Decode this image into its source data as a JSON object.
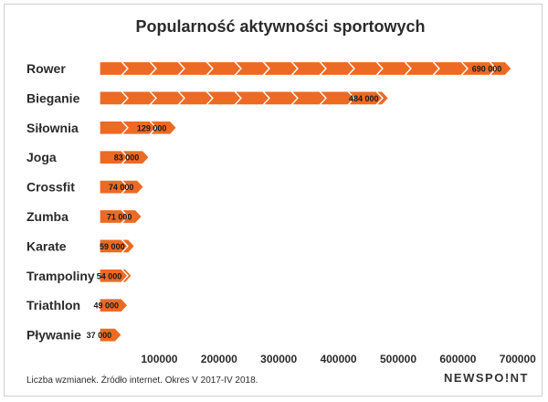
{
  "chart_data": {
    "type": "bar",
    "orientation": "horizontal",
    "title": "Popularność aktywności sportowych",
    "categories": [
      "Rower",
      "Bieganie",
      "Siłownia",
      "Joga",
      "Crossfit",
      "Zumba",
      "Karate",
      "Trampoliny",
      "Triathlon",
      "Pływanie"
    ],
    "values": [
      690000,
      484000,
      129000,
      83000,
      74000,
      71000,
      59000,
      54000,
      49000,
      37000
    ],
    "value_labels": [
      "690 000",
      "484 000",
      "129 000",
      "83 000",
      "74 000",
      "71 000",
      "59 000",
      "54 000",
      "49 000",
      "37 000"
    ],
    "x_ticks": [
      100000,
      200000,
      300000,
      400000,
      500000,
      600000,
      700000
    ],
    "x_tick_labels": [
      "100000",
      "200000",
      "300000",
      "400000",
      "500000",
      "600000",
      "700000"
    ],
    "xlim": [
      0,
      700000
    ],
    "grid": false,
    "bar_color": "#ec6a24",
    "bar_style": "chevron-arrows"
  },
  "footer": {
    "note": "Liczba wzmianek. Źródło internet. Okres V 2017-IV 2018.",
    "brand": "NEWSPO!NT"
  }
}
